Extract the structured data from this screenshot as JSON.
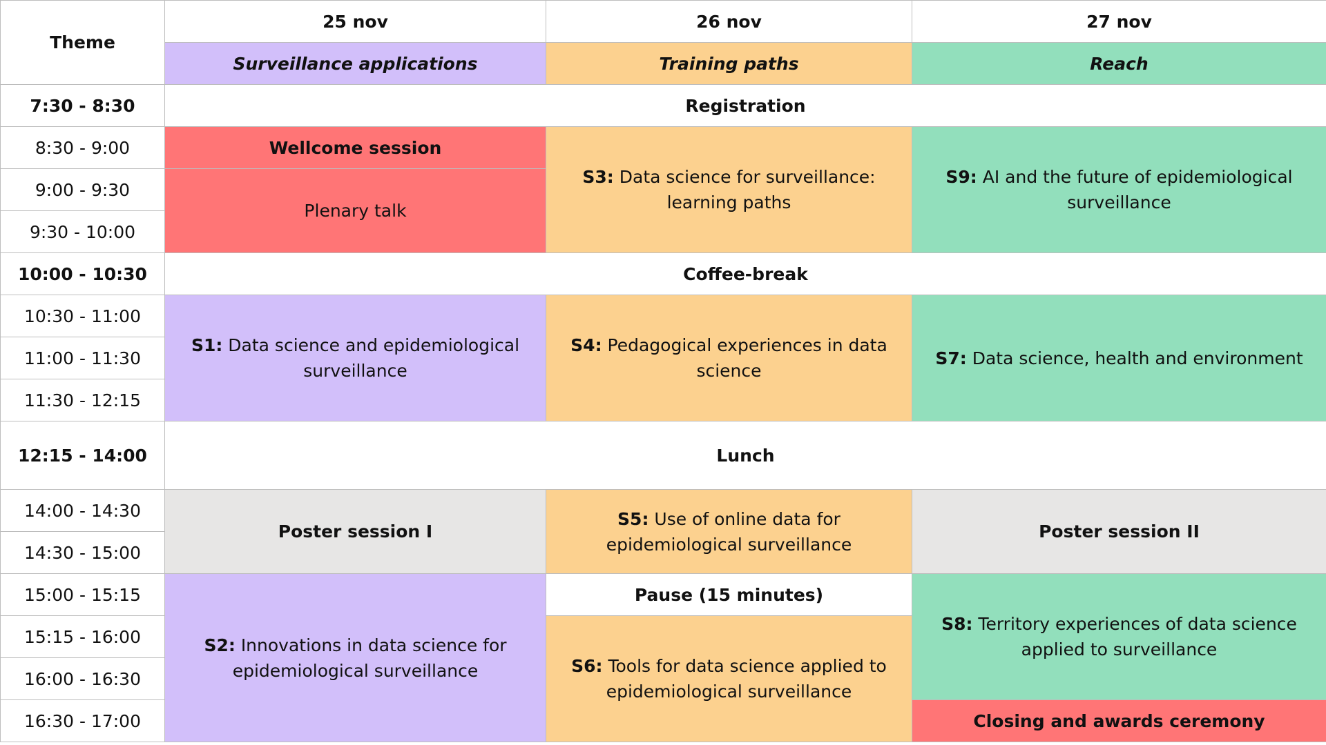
{
  "header": {
    "theme_label": "Theme",
    "days": [
      "25 nov",
      "26 nov",
      "27 nov"
    ],
    "themes": [
      "Surveillance applications",
      "Training paths",
      "Reach"
    ]
  },
  "times": [
    "7:30 - 8:30",
    "8:30 - 9:00",
    "9:00 - 9:30",
    "9:30 - 10:00",
    "10:00 - 10:30",
    "10:30 - 11:00",
    "11:00 - 11:30",
    "11:30 - 12:15",
    "12:15 - 14:00",
    "14:00 - 14:30",
    "14:30 - 15:00",
    "15:00 - 15:15",
    "15:15 - 16:00",
    "16:00 - 16:30",
    "16:30 - 17:00"
  ],
  "common": {
    "registration": "Registration",
    "coffee_break": "Coffee-break",
    "lunch": "Lunch"
  },
  "day1": {
    "welcome": "Wellcome session",
    "plenary": "Plenary talk",
    "s1_code": "S1:",
    "s1_title": "Data science and epidemiological surveillance",
    "poster": "Poster session I",
    "s2_code": "S2:",
    "s2_title": "Innovations in data science for epidemiological surveillance"
  },
  "day2": {
    "s3_code": "S3:",
    "s3_title": "Data science for surveillance: learning paths",
    "s4_code": "S4:",
    "s4_title": "Pedagogical experiences in data science",
    "s5_code": "S5:",
    "s5_title": "Use of online data for epidemiological surveillance",
    "pause": "Pause (15 minutes)",
    "s6_code": "S6:",
    "s6_title": "Tools for data science applied to epidemiological surveillance"
  },
  "day3": {
    "s9_code": "S9:",
    "s9_title": "AI and the future of epidemiological surveillance",
    "s7_code": "S7:",
    "s7_title": "Data science, health and environment",
    "poster": "Poster session II",
    "s8_code": "S8:",
    "s8_title": "Territory experiences of data science applied to surveillance",
    "closing": "Closing and awards ceremony"
  },
  "colors": {
    "purple": "#d2bffa",
    "orange": "#fcd18f",
    "green": "#92dfbc",
    "red": "#ff7576",
    "grey": "#e7e6e5",
    "border": "#bdbdbd"
  }
}
